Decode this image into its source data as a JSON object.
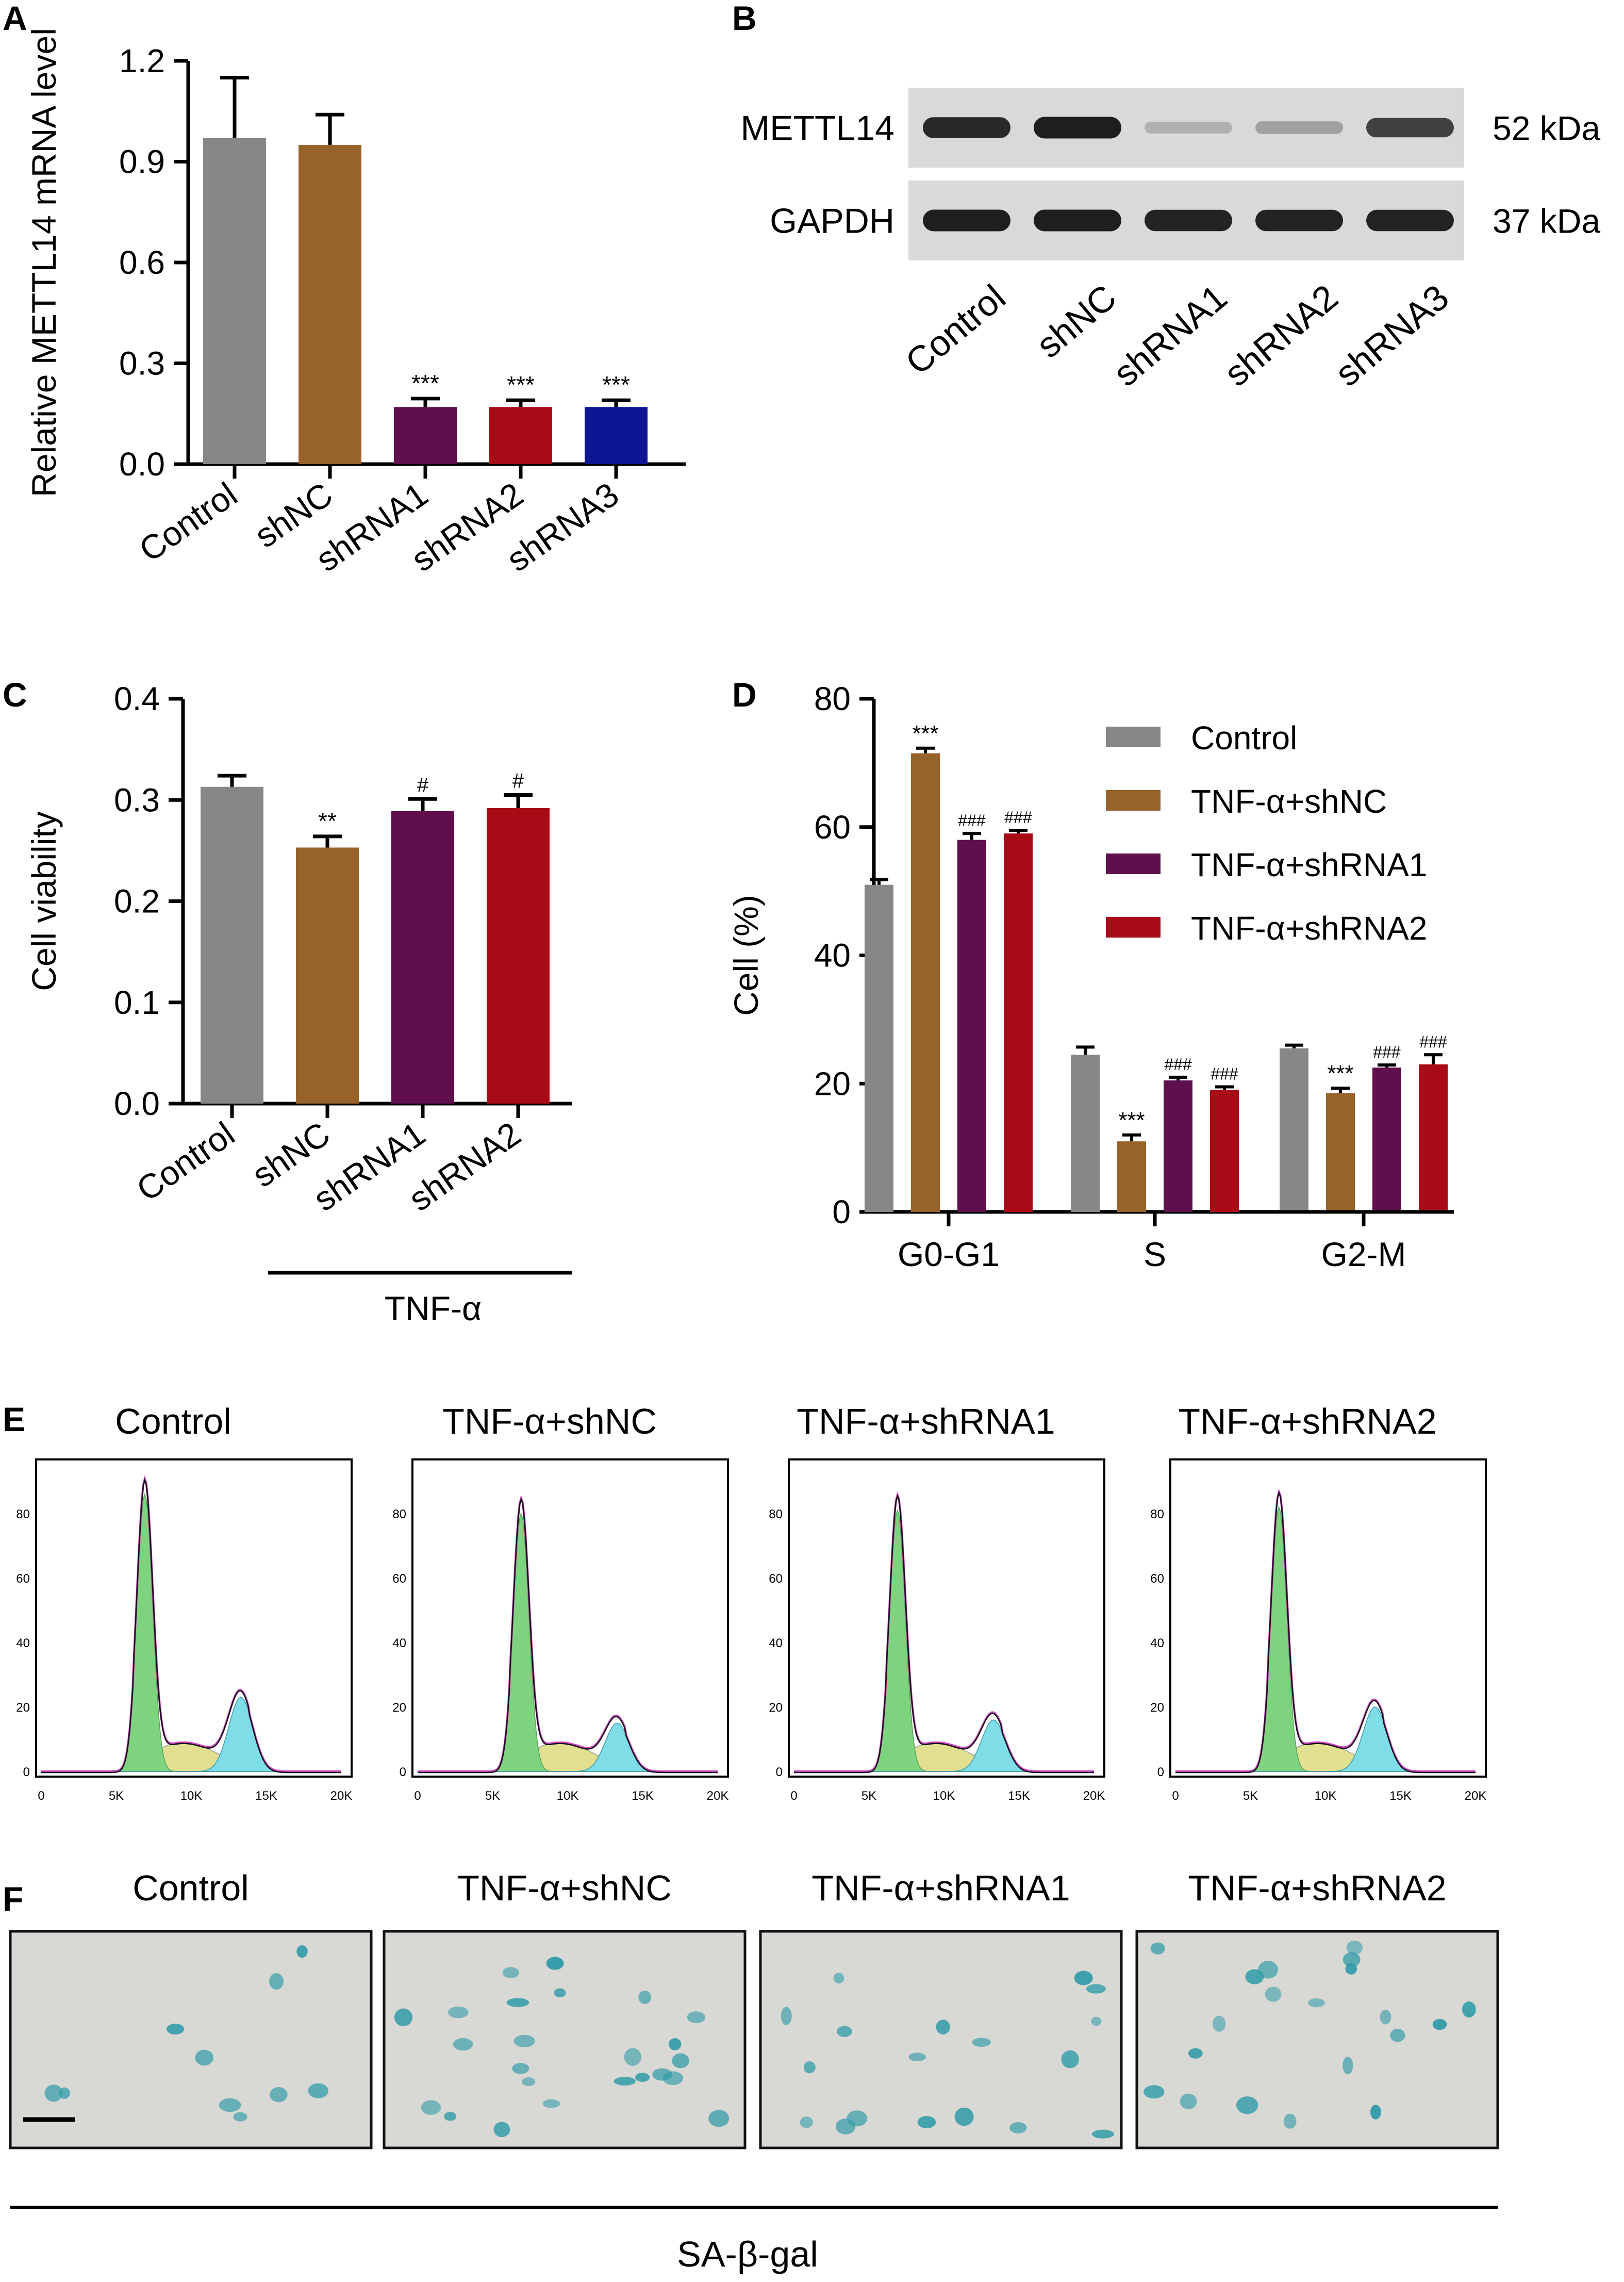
{
  "colors": {
    "control": "#878787",
    "shNC": "#98632A",
    "shRNA1": "#5E0F4C",
    "shRNA2": "#A90B16",
    "shRNA3": "#0E1592",
    "flow_g1": "#7ED47E",
    "flow_s": "#E0E090",
    "flow_g2": "#7FDDE8",
    "flow_fit": "#D044C8",
    "stain": "#2F9BA8"
  },
  "panels": {
    "A": "A",
    "B": "B",
    "C": "C",
    "D": "D",
    "E": "E",
    "F": "F"
  },
  "chart_data": [
    {
      "id": "A",
      "type": "bar",
      "categories": [
        "Control",
        "shNC",
        "shRNA1",
        "shRNA2",
        "shRNA3"
      ],
      "values": [
        0.97,
        0.95,
        0.17,
        0.17,
        0.17
      ],
      "errors": [
        0.18,
        0.09,
        0.025,
        0.02,
        0.02
      ],
      "annotations": [
        "",
        "",
        "***",
        "***",
        "***"
      ],
      "ylabel": "Relative METTL14 mRNA level",
      "ylim": [
        0,
        1.2
      ],
      "yticks": [
        "0.0",
        "0.3",
        "0.6",
        "0.9",
        "1.2"
      ]
    },
    {
      "id": "C",
      "type": "bar",
      "categories": [
        "Control",
        "shNC",
        "shRNA1",
        "shRNA2"
      ],
      "values": [
        0.313,
        0.253,
        0.289,
        0.292
      ],
      "errors": [
        0.011,
        0.011,
        0.012,
        0.013
      ],
      "annotations": [
        "",
        "**",
        "#",
        "#"
      ],
      "ylabel": "Cell viability",
      "ylim": [
        0,
        0.4
      ],
      "yticks": [
        "0.0",
        "0.1",
        "0.2",
        "0.3",
        "0.4"
      ],
      "group_label": "TNF-α"
    },
    {
      "id": "D",
      "type": "bar",
      "categories": [
        "G0-G1",
        "S",
        "G2-M"
      ],
      "series": [
        {
          "name": "Control",
          "values": [
            51,
            24.5,
            25.5
          ],
          "errors": [
            0.8,
            1.2,
            0.5
          ],
          "annotations": [
            "",
            "",
            ""
          ]
        },
        {
          "name": "TNF-α+shNC",
          "values": [
            71.5,
            11,
            18.5
          ],
          "errors": [
            0.8,
            1.0,
            0.8
          ],
          "annotations": [
            "***",
            "***",
            "***"
          ]
        },
        {
          "name": "TNF-α+shRNA1",
          "values": [
            58,
            20.5,
            22.5
          ],
          "errors": [
            1.0,
            0.5,
            0.4
          ],
          "annotations": [
            "###",
            "###",
            "###"
          ]
        },
        {
          "name": "TNF-α+shRNA2",
          "values": [
            59,
            19,
            23
          ],
          "errors": [
            0.5,
            0.5,
            1.5
          ],
          "annotations": [
            "###",
            "###",
            "###"
          ]
        }
      ],
      "ylabel": "Cell (%)",
      "ylim": [
        0,
        80
      ],
      "yticks": [
        "0",
        "20",
        "40",
        "60",
        "80"
      ]
    }
  ],
  "western": {
    "rows": [
      {
        "label": "METTL14",
        "kda": "52 kDa",
        "intensity": [
          0.95,
          1.0,
          0.35,
          0.42,
          0.85
        ]
      },
      {
        "label": "GAPDH",
        "kda": "37 kDa",
        "intensity": [
          1.0,
          1.0,
          0.98,
          0.98,
          0.98
        ]
      }
    ],
    "lanes": [
      "Control",
      "shNC",
      "shRNA1",
      "shRNA2",
      "shRNA3"
    ]
  },
  "flow": {
    "titles": [
      "Control",
      "TNF-α+shNC",
      "TNF-α+shRNA1",
      "TNF-α+shRNA2"
    ],
    "yticks": [
      "0",
      "20",
      "40",
      "60",
      "80"
    ],
    "xticks": [
      "0",
      "5K",
      "10K",
      "15K",
      "20K"
    ],
    "peaks": [
      86,
      80,
      81,
      82
    ],
    "g2_peaks": [
      23,
      15,
      16,
      20
    ]
  },
  "stain": {
    "titles": [
      "Control",
      "TNF-α+shNC",
      "TNF-α+shRNA1",
      "TNF-α+shRNA2"
    ],
    "footer": "SA-β-gal"
  }
}
